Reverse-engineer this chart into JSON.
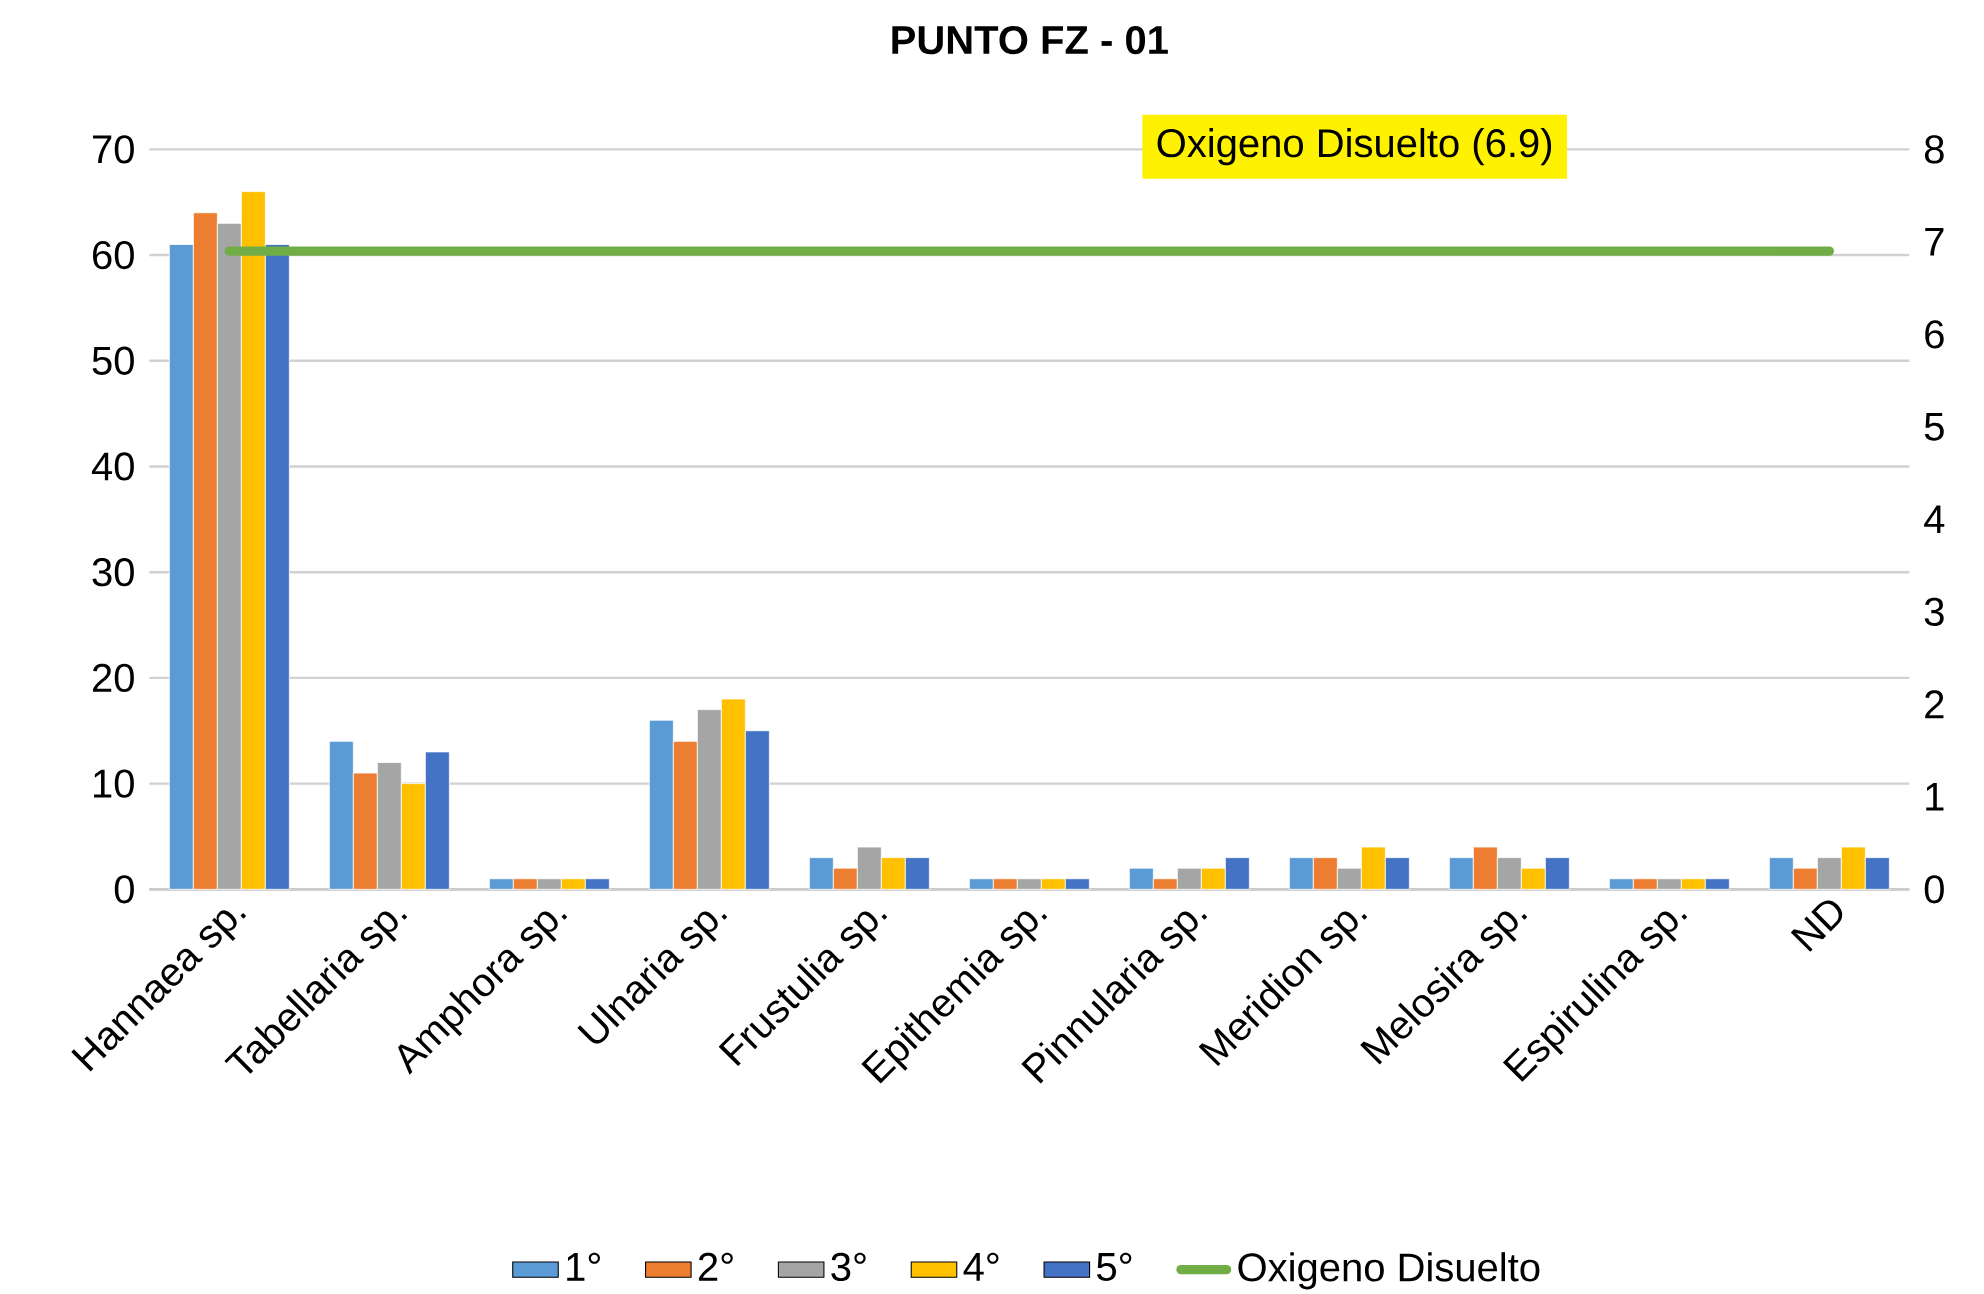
{
  "chart_data": {
    "type": "bar",
    "title": "PUNTO  FZ - 01",
    "categories": [
      "Hannaea sp.",
      "Tabellaria sp.",
      "Amphora sp.",
      "Ulnaria sp.",
      "Frustulia sp.",
      "Epithemia sp.",
      "Pinnularia sp.",
      "Meridion sp.",
      "Melosira sp.",
      "Espirulina sp.",
      "ND"
    ],
    "series": [
      {
        "name": "1°",
        "color": "#5b9bd5",
        "values": [
          61,
          14,
          1,
          16,
          3,
          1,
          2,
          3,
          3,
          1,
          3
        ]
      },
      {
        "name": "2°",
        "color": "#ed7d31",
        "values": [
          64,
          11,
          1,
          14,
          2,
          1,
          1,
          3,
          4,
          1,
          2
        ]
      },
      {
        "name": "3°",
        "color": "#a5a5a5",
        "values": [
          63,
          12,
          1,
          17,
          4,
          1,
          2,
          2,
          3,
          1,
          3
        ]
      },
      {
        "name": "4°",
        "color": "#ffc000",
        "values": [
          66,
          10,
          1,
          18,
          3,
          1,
          2,
          4,
          2,
          1,
          4
        ]
      },
      {
        "name": "5°",
        "color": "#4472c4",
        "values": [
          61,
          13,
          1,
          15,
          3,
          1,
          3,
          3,
          3,
          1,
          3
        ]
      },
      {
        "name": "Oxigeno Disuelto",
        "color": "#70ad47",
        "type": "line",
        "axis": "y2",
        "values": [
          6.9,
          6.9,
          6.9,
          6.9,
          6.9,
          6.9,
          6.9,
          6.9,
          6.9,
          6.9,
          6.9
        ]
      }
    ],
    "ylim": [
      0,
      70
    ],
    "yticks": [
      0,
      10,
      20,
      30,
      40,
      50,
      60,
      70
    ],
    "y2lim": [
      0,
      8
    ],
    "y2ticks": [
      0,
      1,
      2,
      3,
      4,
      5,
      6,
      7,
      8
    ],
    "grid": "y",
    "legend": "bottom",
    "annotations": [
      "Oxigeno Disuelto (6.9)"
    ]
  }
}
